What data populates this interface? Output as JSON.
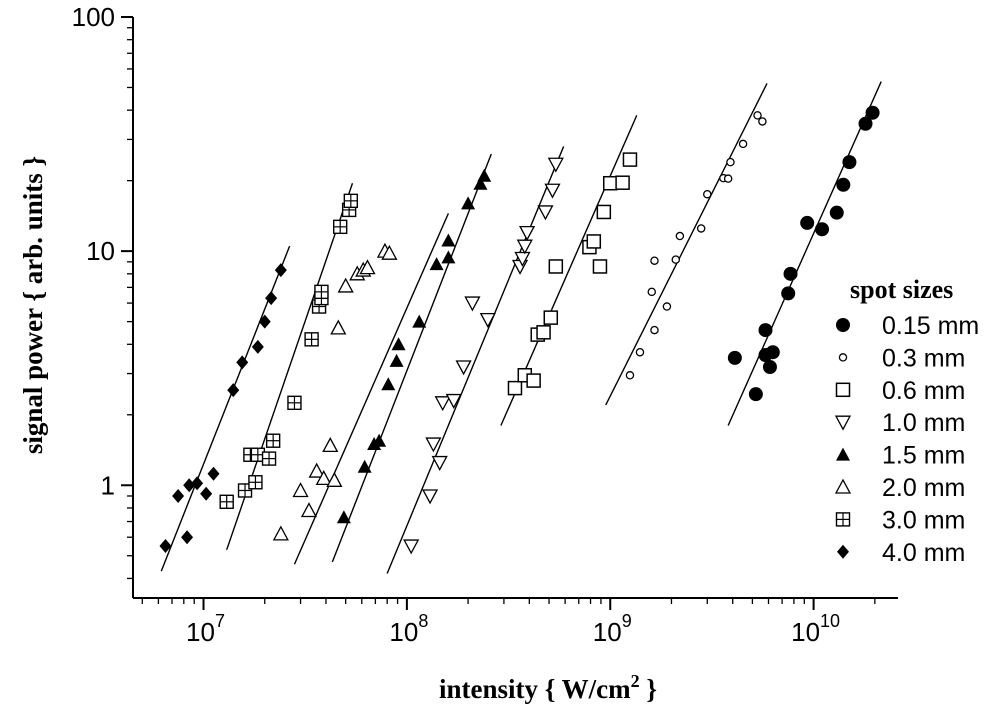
{
  "chart_data": {
    "type": "scatter",
    "title": "",
    "xlabel": "intensity { W/cm",
    "xlabel_sup": "2",
    "xlabel_tail": " }",
    "ylabel": "signal power { arb. units }",
    "xscale": "log",
    "yscale": "log",
    "xlim": [
      4500000.0,
      26000000000.0
    ],
    "ylim": [
      0.33,
      100
    ],
    "grid": false,
    "legend_title": "spot sizes",
    "legend_position": "right",
    "x_ticks": [
      {
        "value": 10000000.0,
        "base": "10",
        "exp": "7"
      },
      {
        "value": 100000000.0,
        "base": "10",
        "exp": "8"
      },
      {
        "value": 1000000000.0,
        "base": "10",
        "exp": "9"
      },
      {
        "value": 10000000000.0,
        "base": "10",
        "exp": "10"
      }
    ],
    "y_ticks": [
      {
        "value": 1,
        "label": "1"
      },
      {
        "value": 10,
        "label": "10"
      },
      {
        "value": 100,
        "label": "100"
      }
    ],
    "series": [
      {
        "name": "0.15 mm",
        "marker": "circle-filled",
        "points": [
          [
            4100000000.0,
            3.5
          ],
          [
            5200000000.0,
            2.45
          ],
          [
            5800000000.0,
            3.6
          ],
          [
            5800000000.0,
            4.6
          ],
          [
            6100000000.0,
            3.2
          ],
          [
            6300000000.0,
            3.7
          ],
          [
            7500000000.0,
            6.6
          ],
          [
            7700000000.0,
            8
          ],
          [
            9300000000.0,
            13.2
          ],
          [
            11000000000.0,
            12.4
          ],
          [
            13000000000.0,
            14.6
          ],
          [
            14000000000.0,
            19.2
          ],
          [
            15000000000.0,
            24
          ],
          [
            18000000000.0,
            35
          ],
          [
            19500000000.0,
            39
          ]
        ],
        "fit": [
          [
            3800000000.0,
            1.8
          ],
          [
            21500000000.0,
            53
          ]
        ]
      },
      {
        "name": "0.3 mm",
        "marker": "circle-open",
        "points": [
          [
            1250000000.0,
            2.95
          ],
          [
            1400000000.0,
            3.7
          ],
          [
            1600000000.0,
            6.7
          ],
          [
            1650000000.0,
            4.6
          ],
          [
            1650000000.0,
            9.1
          ],
          [
            1900000000.0,
            5.8
          ],
          [
            2100000000.0,
            9.2
          ],
          [
            2200000000.0,
            11.6
          ],
          [
            2800000000.0,
            12.5
          ],
          [
            3000000000.0,
            17.5
          ],
          [
            3600000000.0,
            20.5
          ],
          [
            3800000000.0,
            20.4
          ],
          [
            3900000000.0,
            24
          ],
          [
            4500000000.0,
            28.7
          ],
          [
            5300000000.0,
            38
          ],
          [
            5600000000.0,
            35.8
          ]
        ],
        "fit": [
          [
            950000000.0,
            2.2
          ],
          [
            5900000000.0,
            52
          ]
        ]
      },
      {
        "name": "0.6 mm",
        "marker": "square-open",
        "points": [
          [
            340000000.0,
            2.6
          ],
          [
            380000000.0,
            2.95
          ],
          [
            420000000.0,
            2.8
          ],
          [
            440000000.0,
            4.4
          ],
          [
            470000000.0,
            4.5
          ],
          [
            510000000.0,
            5.2
          ],
          [
            540000000.0,
            8.6
          ],
          [
            790000000.0,
            10.4
          ],
          [
            830000000.0,
            11
          ],
          [
            890000000.0,
            8.6
          ],
          [
            930000000.0,
            14.7
          ],
          [
            1000000000.0,
            19.5
          ],
          [
            1150000000.0,
            19.6
          ],
          [
            1250000000.0,
            24.6
          ]
        ],
        "fit": [
          [
            290000000.0,
            1.8
          ],
          [
            1350000000.0,
            38
          ]
        ]
      },
      {
        "name": "1.0 mm",
        "marker": "triangle-down-open",
        "points": [
          [
            105000000.0,
            0.55
          ],
          [
            130000000.0,
            0.9
          ],
          [
            135000000.0,
            1.5
          ],
          [
            145000000.0,
            1.25
          ],
          [
            150000000.0,
            2.25
          ],
          [
            170000000.0,
            2.3
          ],
          [
            190000000.0,
            3.2
          ],
          [
            210000000.0,
            6
          ],
          [
            250000000.0,
            5.1
          ],
          [
            360000000.0,
            8.6
          ],
          [
            370000000.0,
            9.3
          ],
          [
            380000000.0,
            10.5
          ],
          [
            390000000.0,
            12
          ],
          [
            480000000.0,
            14.7
          ],
          [
            520000000.0,
            18.2
          ],
          [
            540000000.0,
            23.5
          ]
        ],
        "fit": [
          [
            80000000.0,
            0.42
          ],
          [
            590000000.0,
            28
          ]
        ]
      },
      {
        "name": "1.5 mm",
        "marker": "triangle-up-filled",
        "points": [
          [
            49000000.0,
            0.73
          ],
          [
            62000000.0,
            1.2
          ],
          [
            69000000.0,
            1.5
          ],
          [
            73000000.0,
            1.55
          ],
          [
            81000000.0,
            2.7
          ],
          [
            89000000.0,
            3.4
          ],
          [
            91000000.0,
            4
          ],
          [
            115000000.0,
            5
          ],
          [
            140000000.0,
            8.8
          ],
          [
            160000000.0,
            9.4
          ],
          [
            160000000.0,
            11.1
          ],
          [
            200000000.0,
            16
          ],
          [
            230000000.0,
            19.4
          ],
          [
            240000000.0,
            21
          ]
        ],
        "fit": [
          [
            43000000.0,
            0.47
          ],
          [
            260000000.0,
            26
          ]
        ]
      },
      {
        "name": "2.0 mm",
        "marker": "triangle-up-open",
        "points": [
          [
            24000000.0,
            0.62
          ],
          [
            30000000.0,
            0.95
          ],
          [
            33000000.0,
            0.78
          ],
          [
            36000000.0,
            1.15
          ],
          [
            39000000.0,
            1.07
          ],
          [
            42000000.0,
            1.48
          ],
          [
            44000000.0,
            1.05
          ],
          [
            46000000.0,
            4.7
          ],
          [
            50000000.0,
            7.1
          ],
          [
            57000000.0,
            8
          ],
          [
            61000000.0,
            8.3
          ],
          [
            64000000.0,
            8.5
          ],
          [
            78000000.0,
            10
          ],
          [
            82000000.0,
            9.8
          ]
        ],
        "fit": [
          [
            28000000.0,
            0.46
          ],
          [
            160000000.0,
            14.5
          ]
        ]
      },
      {
        "name": "3.0 mm",
        "marker": "square-plus",
        "points": [
          [
            13000000.0,
            0.85
          ],
          [
            16000000.0,
            0.95
          ],
          [
            17000000.0,
            1.35
          ],
          [
            18000000.0,
            1.03
          ],
          [
            18500000.0,
            1.35
          ],
          [
            21000000.0,
            1.3
          ],
          [
            22000000.0,
            1.55
          ],
          [
            28000000.0,
            2.25
          ],
          [
            34000000.0,
            4.2
          ],
          [
            37000000.0,
            5.8
          ],
          [
            38000000.0,
            6.3
          ],
          [
            38000000.0,
            6.7
          ],
          [
            47000000.0,
            12.7
          ],
          [
            52000000.0,
            15
          ],
          [
            53000000.0,
            16.4
          ]
        ],
        "fit": [
          [
            13000000.0,
            0.53
          ],
          [
            54000000.0,
            19.5
          ]
        ]
      },
      {
        "name": "4.0 mm",
        "marker": "diamond-filled",
        "points": [
          [
            6500000.0,
            0.55
          ],
          [
            7500000.0,
            0.9
          ],
          [
            8300000.0,
            0.6
          ],
          [
            8500000.0,
            1
          ],
          [
            9300000.0,
            1.02
          ],
          [
            10300000.0,
            0.92
          ],
          [
            11200000.0,
            1.12
          ],
          [
            14000000.0,
            2.55
          ],
          [
            15500000.0,
            3.35
          ],
          [
            18500000.0,
            3.9
          ],
          [
            20000000.0,
            5
          ],
          [
            21500000.0,
            6.3
          ],
          [
            24000000.0,
            8.3
          ]
        ],
        "fit": [
          [
            6200000.0,
            0.43
          ],
          [
            26500000.0,
            10.5
          ]
        ]
      }
    ]
  }
}
